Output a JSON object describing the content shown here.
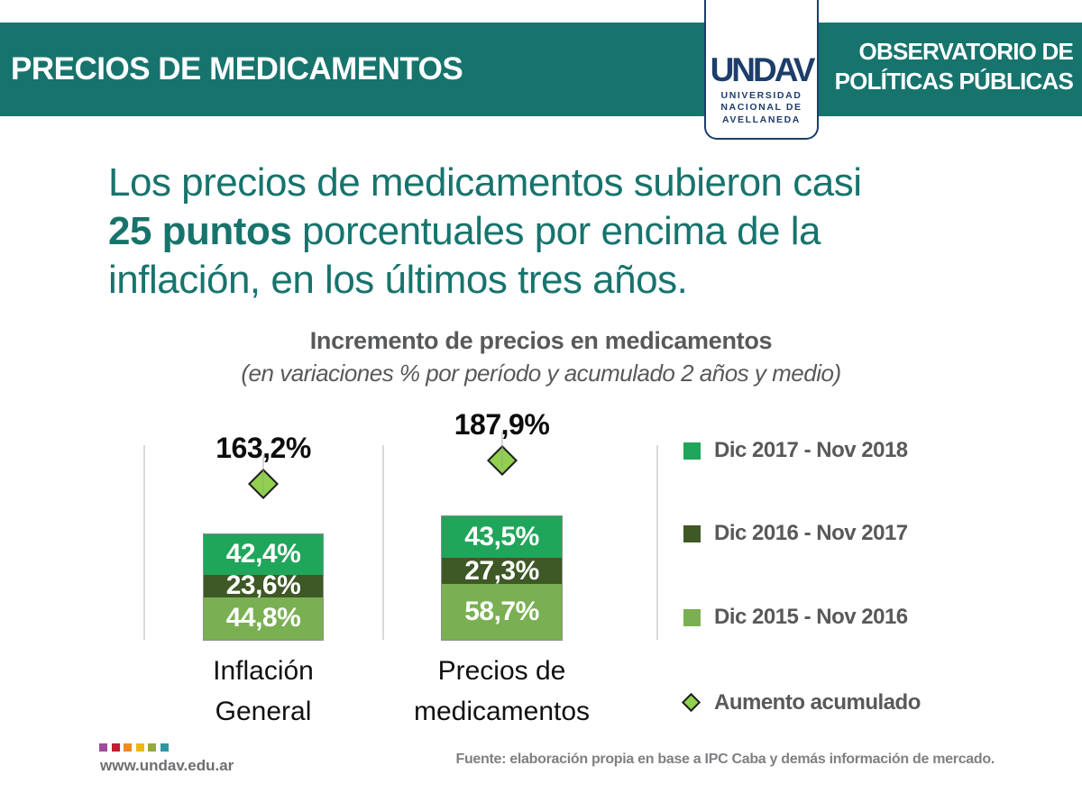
{
  "colors": {
    "brand_teal": "#17746d",
    "brand_navy": "#1d3d6b",
    "text_gray": "#58595b"
  },
  "header": {
    "title": "PRECIOS DE MEDICAMENTOS",
    "observatory_line1": "OBSERVATORIO DE",
    "observatory_line2": "POLÍTICAS PÚBLICAS",
    "logo": {
      "wordmark": "UNDAV",
      "line1": "UNIVERSIDAD",
      "line2": "NACIONAL DE",
      "line3": "AVELLANEDA"
    }
  },
  "headline": {
    "line1": "Los precios de medicamentos subieron casi",
    "line2_bold": "25 puntos",
    "line2_rest": " porcentuales por encima de la",
    "line3": "inflación, en los últimos tres años."
  },
  "chart_data": {
    "type": "bar",
    "stacked": true,
    "title": "Incremento de precios en medicamentos",
    "subtitle": "(en variaciones % por período y acumulado 2 años y medio)",
    "unit": "%",
    "ylim": [
      0,
      200
    ],
    "grid": "category-separator-lines",
    "legend_position": "right",
    "categories": [
      "Inflación General",
      "Precios de medicamentos"
    ],
    "categories_display": [
      [
        "Inflación",
        "General"
      ],
      [
        "Precios de",
        "medicamentos"
      ]
    ],
    "series": [
      {
        "name": "Dic 2017 - Nov 2018",
        "color": "#1fa65a",
        "values": [
          42.4,
          43.5
        ],
        "labels": [
          "42,4%",
          "43,5%"
        ]
      },
      {
        "name": "Dic 2016 - Nov 2017",
        "color": "#3e5826",
        "values": [
          23.6,
          27.3
        ],
        "labels": [
          "23,6%",
          "27,3%"
        ]
      },
      {
        "name": "Dic 2015 - Nov 2016",
        "color": "#7ab052",
        "values": [
          44.8,
          58.7
        ],
        "labels": [
          "44,8%",
          "58,7%"
        ]
      }
    ],
    "accumulated": {
      "name": "Aumento acumulado",
      "marker": "diamond",
      "marker_color": "#92d050",
      "values": [
        163.2,
        187.9
      ],
      "labels": [
        "163,2%",
        "187,9%"
      ]
    }
  },
  "footer": {
    "dot_colors": [
      "#a04b9b",
      "#c01f2f",
      "#f18a21",
      "#edb812",
      "#95a844",
      "#2e96a0"
    ],
    "url": "www.undav.edu.ar",
    "source": "Fuente: elaboración propia en base a IPC Caba y demás información de mercado."
  }
}
